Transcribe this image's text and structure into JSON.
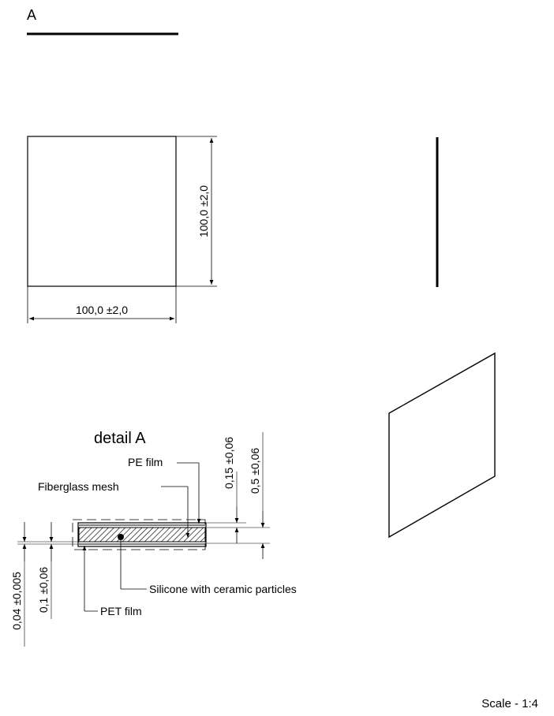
{
  "section_label": "A",
  "views": {
    "front": {
      "width_dim": "100,0 ±2,0",
      "height_dim": "100,0 ±2,0"
    }
  },
  "detail": {
    "title": "detail A",
    "callouts": {
      "pe_film": "PE film",
      "fiberglass_mesh": "Fiberglass mesh",
      "silicone": "Silicone with ceramic particles",
      "pet_film": "PET film"
    },
    "dims": {
      "d015": "0,15 ±0,06",
      "d05": "0,5 ±0,06",
      "d004": "0,04 ±0,005",
      "d01": "0,1 ±0,06"
    }
  },
  "scale": "Scale - 1:4"
}
